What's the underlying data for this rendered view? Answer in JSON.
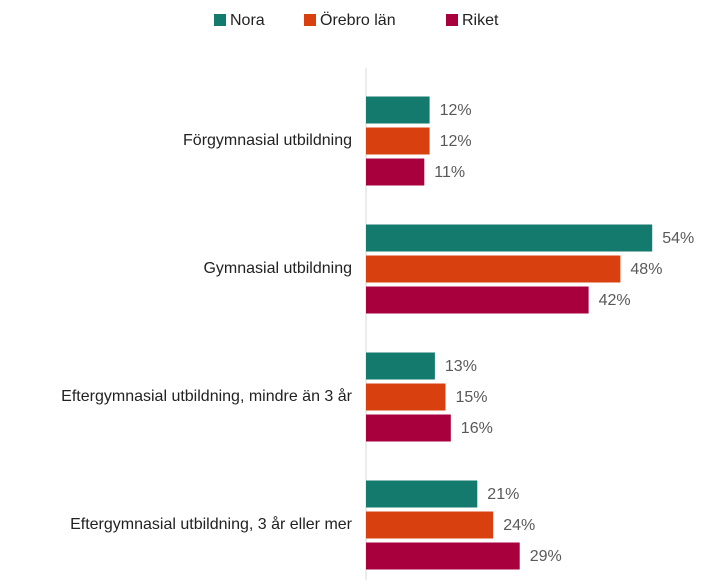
{
  "chart_data": {
    "type": "bar",
    "orientation": "horizontal",
    "categories": [
      "Förgymnasial utbildning",
      "Gymnasial utbildning",
      "Eftergymnasial utbildning, mindre än 3 år",
      "Eftergymnasial utbildning, 3 år eller mer"
    ],
    "series": [
      {
        "name": "Nora",
        "color": "#157a6e",
        "values": [
          12,
          54,
          13,
          21
        ],
        "value_labels": [
          "12%",
          "54%",
          "13%",
          "21%"
        ]
      },
      {
        "name": "Örebro län",
        "color": "#d9400f",
        "values": [
          12,
          48,
          15,
          24
        ],
        "value_labels": [
          "12%",
          "48%",
          "15%",
          "24%"
        ]
      },
      {
        "name": "Riket",
        "color": "#a8003c",
        "values": [
          11,
          42,
          16,
          29
        ],
        "value_labels": [
          "11%",
          "42%",
          "16%",
          "29%"
        ]
      }
    ],
    "xlim": [
      0,
      60
    ],
    "legend": "top"
  }
}
